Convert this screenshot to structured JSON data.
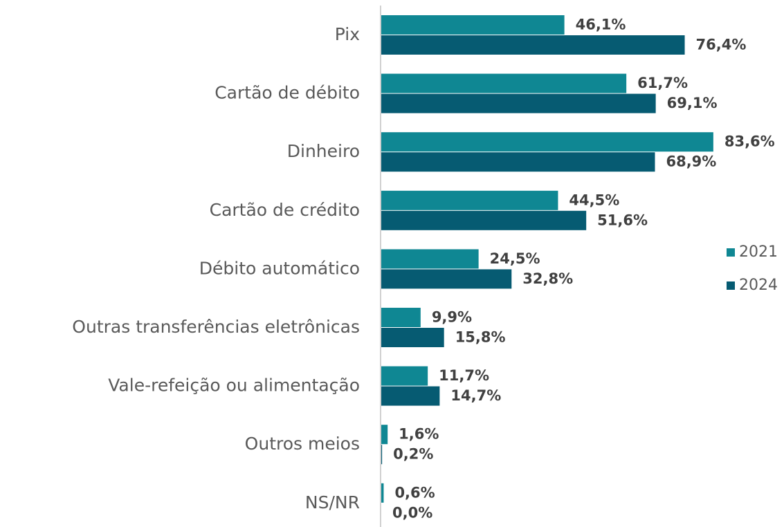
{
  "chart_data": {
    "type": "bar",
    "orientation": "horizontal",
    "categories": [
      "Pix",
      "Cartão de débito",
      "Dinheiro",
      "Cartão de crédito",
      "Débito automático",
      "Outras transferências eletrônicas",
      "Vale-refeição ou alimentação",
      "Outros meios",
      "NS/NR"
    ],
    "series": [
      {
        "name": "2021",
        "color": "#0f8793",
        "values": [
          46.1,
          61.7,
          83.6,
          44.5,
          24.5,
          9.9,
          11.7,
          1.6,
          0.6
        ],
        "value_labels": [
          "46,1%",
          "61,7%",
          "83,6%",
          "44,5%",
          "24,5%",
          "9,9%",
          "11,7%",
          "1,6%",
          "0,6%"
        ]
      },
      {
        "name": "2024",
        "color": "#065b72",
        "values": [
          76.4,
          69.1,
          68.9,
          51.6,
          32.8,
          15.8,
          14.7,
          0.2,
          0.0
        ],
        "value_labels": [
          "76,4%",
          "69,1%",
          "68,9%",
          "51,6%",
          "32,8%",
          "15,8%",
          "14,7%",
          "0,2%",
          "0,0%"
        ]
      }
    ],
    "xlim": [
      0,
      100
    ],
    "legend": "right"
  }
}
